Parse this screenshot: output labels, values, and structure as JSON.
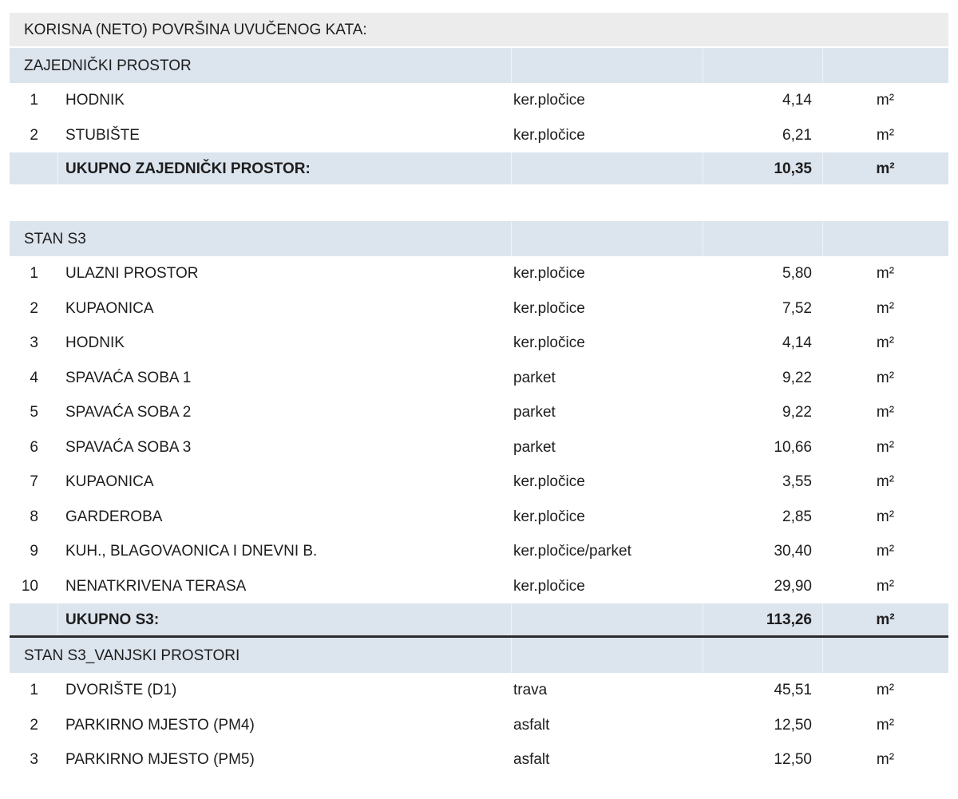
{
  "title": "KORISNA (NETO) POVRŠINA UVUČENOG KATA:",
  "colors": {
    "band_blue": "#dce4ee",
    "band_gray": "#ececec",
    "text": "#1d1d1d",
    "total_rule": "#2b2b2b"
  },
  "sections": [
    {
      "header": "ZAJEDNIČKI PROSTOR",
      "rows": [
        {
          "num": "1",
          "name": "HODNIK",
          "material": "ker.pločice",
          "area": "4,14",
          "unit": "m²"
        },
        {
          "num": "2",
          "name": "STUBIŠTE",
          "material": "ker.pločice",
          "area": "6,21",
          "unit": "m²"
        }
      ],
      "total": {
        "label": "UKUPNO ZAJEDNIČKI PROSTOR:",
        "area": "10,35",
        "unit": "m²"
      },
      "gap_after": true,
      "rule_after_total": false
    },
    {
      "header": "STAN S3",
      "rows": [
        {
          "num": "1",
          "name": "ULAZNI PROSTOR",
          "material": "ker.pločice",
          "area": "5,80",
          "unit": "m²"
        },
        {
          "num": "2",
          "name": "KUPAONICA",
          "material": "ker.pločice",
          "area": "7,52",
          "unit": "m²"
        },
        {
          "num": "3",
          "name": "HODNIK",
          "material": "ker.pločice",
          "area": "4,14",
          "unit": "m²"
        },
        {
          "num": "4",
          "name": "SPAVAĆA SOBA 1",
          "material": "parket",
          "area": "9,22",
          "unit": "m²"
        },
        {
          "num": "5",
          "name": "SPAVAĆA SOBA 2",
          "material": "parket",
          "area": "9,22",
          "unit": "m²"
        },
        {
          "num": "6",
          "name": "SPAVAĆA SOBA 3",
          "material": "parket",
          "area": "10,66",
          "unit": "m²"
        },
        {
          "num": "7",
          "name": "KUPAONICA",
          "material": "ker.pločice",
          "area": "3,55",
          "unit": "m²"
        },
        {
          "num": "8",
          "name": "GARDEROBA",
          "material": "ker.pločice",
          "area": "2,85",
          "unit": "m²"
        },
        {
          "num": "9",
          "name": "KUH., BLAGOVAONICA I DNEVNI B.",
          "material": "ker.pločice/parket",
          "area": "30,40",
          "unit": "m²"
        },
        {
          "num": "10",
          "name": "NENATKRIVENA TERASA",
          "material": "ker.pločice",
          "area": "29,90",
          "unit": "m²"
        }
      ],
      "total": {
        "label": "UKUPNO S3:",
        "area": "113,26",
        "unit": "m²"
      },
      "gap_after": false,
      "rule_after_total": true
    },
    {
      "header": "STAN S3_VANJSKI PROSTORI",
      "rows": [
        {
          "num": "1",
          "name": "DVORIŠTE (D1)",
          "material": "trava",
          "area": "45,51",
          "unit": "m²"
        },
        {
          "num": "2",
          "name": "PARKIRNO MJESTO (PM4)",
          "material": "asfalt",
          "area": "12,50",
          "unit": "m²"
        },
        {
          "num": "3",
          "name": "PARKIRNO MJESTO (PM5)",
          "material": "asfalt",
          "area": "12,50",
          "unit": "m²"
        }
      ],
      "total": null,
      "gap_after": false,
      "rule_after_total": false
    }
  ]
}
